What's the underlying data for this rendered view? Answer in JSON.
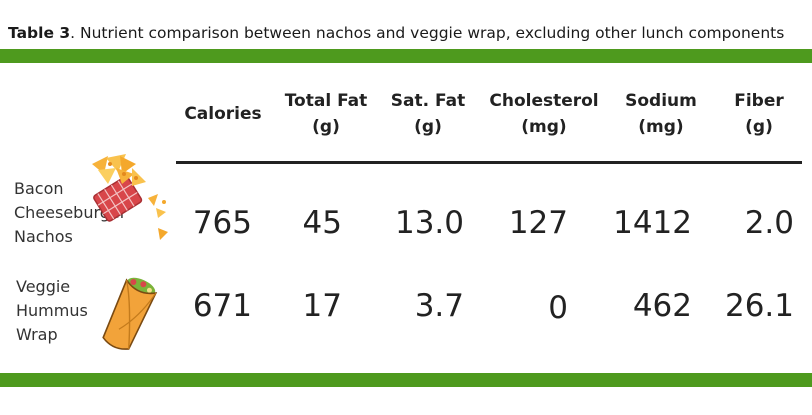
{
  "caption": {
    "label": "Table 3",
    "text": ". Nutrient comparison between nachos and veggie wrap, excluding other lunch components"
  },
  "colors": {
    "accent_bar": "#4e9a1e",
    "rule": "#222222"
  },
  "columns": [
    {
      "line1": "Calories",
      "line2": ""
    },
    {
      "line1": "Total Fat",
      "line2": "(g)"
    },
    {
      "line1": "Sat. Fat",
      "line2": "(g)"
    },
    {
      "line1": "Cholesterol",
      "line2": "(mg)"
    },
    {
      "line1": "Sodium",
      "line2": "(mg)"
    },
    {
      "line1": "Fiber",
      "line2": "(g)"
    }
  ],
  "rows": [
    {
      "name_lines": [
        "Bacon",
        "Cheeseburger",
        "Nachos"
      ],
      "icon": "nachos-icon",
      "values": [
        "765",
        "45",
        "13.0",
        "127",
        "1412",
        "2.0"
      ]
    },
    {
      "name_lines": [
        "Veggie",
        "Hummus",
        "Wrap"
      ],
      "icon": "wrap-icon",
      "values": [
        "671",
        "17",
        "3.7",
        "0",
        "462",
        "26.1"
      ]
    }
  ]
}
